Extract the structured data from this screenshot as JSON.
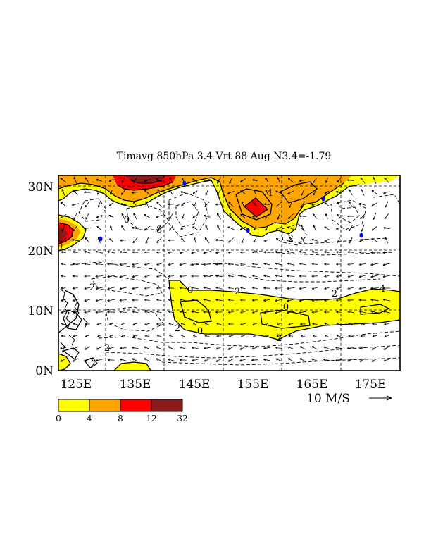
{
  "figure": {
    "title": "Timavg 850hPa 3.4 Vrt 88 Aug N3.4=-1.79"
  },
  "map": {
    "lon_range": [
      120,
      178
    ],
    "lat_range": [
      0,
      32
    ],
    "lat_labels": [
      "0N",
      "10N",
      "20N",
      "30N"
    ],
    "lon_labels": [
      "125E",
      "135E",
      "145E",
      "155E",
      "165E",
      "175E"
    ],
    "grid": "dashed, every 10 degrees",
    "fill_colors": [
      "#ffff00",
      "#ffa500",
      "#ff0000",
      "#8b1a1a"
    ],
    "contour_labels": [
      "0",
      "4",
      "8",
      "2",
      "0",
      "2",
      "0",
      "2",
      "2",
      "0",
      "2",
      "4",
      "2",
      "2"
    ],
    "marker_color": "#0000ff"
  },
  "vector_scale": {
    "label": "10 M/S"
  },
  "colorbar": {
    "ticks": [
      "0",
      "4",
      "8",
      "12",
      "32"
    ],
    "colors": [
      "#ffff00",
      "#ffa500",
      "#ff0000",
      "#8b1a1a"
    ]
  }
}
